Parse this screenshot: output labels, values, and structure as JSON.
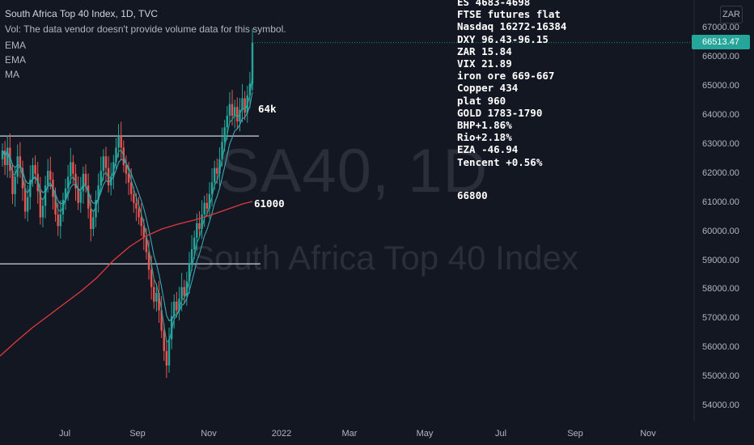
{
  "header": {
    "symbol_line": "South Africa Top 40 Index, 1D, TVC",
    "volume_line": "Vol: The data vendor doesn't provide volume data for this symbol."
  },
  "indicators": [
    "EMA",
    "EMA",
    "MA"
  ],
  "watermark": {
    "symbol": "SA40, 1D",
    "name": "South Africa Top 40 Index"
  },
  "currency": "ZAR",
  "last_price": "66513.47",
  "notes": [
    "ES 4683-4698",
    "FTSE futures flat",
    "Nasdaq 16272-16384",
    "DXY 96.43-96.15",
    "ZAR 15.84",
    "VIX 21.89",
    "iron ore 669-667",
    "Copper 434",
    "plat 960",
    "GOLD 1783-1790",
    "BHP+1.86%",
    "Rio+2.18%",
    "EZA -46.94",
    "Tencent +0.56%"
  ],
  "annotations": {
    "a1": "64k",
    "a2": "61000",
    "a3": "66800"
  },
  "colors": {
    "up": "#26a69a",
    "down": "#ef5350",
    "ema_fast": "#26a69a",
    "ema_slow": "#3ba7b8",
    "ma": "#e0393e",
    "background": "#131722"
  },
  "chart_data": {
    "type": "candlestick",
    "y_ticks": [
      "67000.00",
      "66000.00",
      "65000.00",
      "64000.00",
      "63000.00",
      "62000.00",
      "61000.00",
      "60000.00",
      "59000.00",
      "58000.00",
      "57000.00",
      "56000.00",
      "55000.00",
      "54000.00"
    ],
    "ylim": [
      53600,
      67600
    ],
    "x_ticks": [
      "Jul",
      "Sep",
      "Nov",
      "2022",
      "Mar",
      "May",
      "Jul",
      "Sep",
      "Nov"
    ],
    "horizontal_lines": [
      63300,
      58900
    ],
    "closes": [
      62800,
      62300,
      62900,
      62100,
      61300,
      61900,
      62600,
      62200,
      61500,
      60700,
      61200,
      61800,
      62300,
      62000,
      61400,
      60500,
      60900,
      61600,
      62100,
      61800,
      61200,
      60600,
      60200,
      60600,
      61100,
      61500,
      61900,
      62400,
      62000,
      61500,
      61000,
      61400,
      62000,
      61600,
      60800,
      60100,
      60500,
      61100,
      61600,
      62100,
      62600,
      62200,
      61600,
      61900,
      62400,
      62900,
      63300,
      62900,
      62300,
      62000,
      61700,
      61300,
      61000,
      60800,
      60500,
      60200,
      59800,
      59300,
      58700,
      58100,
      57600,
      57900,
      57300,
      56600,
      55900,
      55400,
      56300,
      57100,
      57600,
      57300,
      57700,
      58100,
      57800,
      58300,
      58900,
      59400,
      59800,
      60300,
      60100,
      60600,
      61000,
      60800,
      61300,
      61700,
      62200,
      62000,
      62500,
      63100,
      63600,
      64000,
      64400,
      64000,
      64300,
      63800,
      64200,
      64600,
      64100,
      64700,
      65100,
      66513
    ]
  }
}
